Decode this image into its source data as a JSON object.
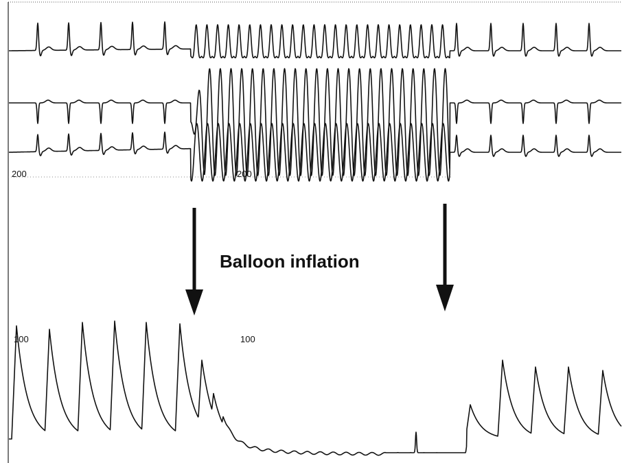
{
  "scale_labels": [
    "200",
    "200",
    "100",
    "100"
  ],
  "annotation": "Balloon inflation"
}
